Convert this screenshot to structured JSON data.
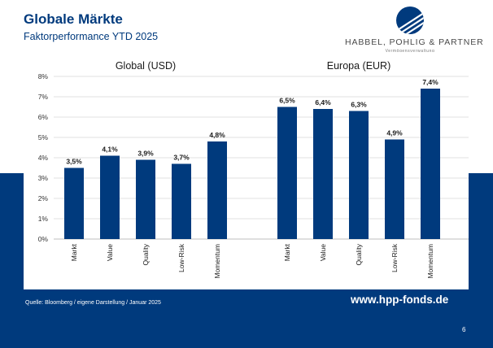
{
  "slide": {
    "title": "Globale Märkte",
    "subtitle": "Faktorperformance YTD 2025",
    "source": "Quelle: Bloomberg / eigene Darstellung / Januar 2025",
    "url": "www.hpp-fonds.de",
    "page_number": "6"
  },
  "logo": {
    "name": "HABBEL, POHLIG & PARTNER",
    "tagline": "Vermögensverwaltung",
    "color": "#003a7d"
  },
  "colors": {
    "bar": "#003a7d",
    "background_band": "#003a7d",
    "text": "#003a7d"
  },
  "chart_data": {
    "type": "bar",
    "y_ticks": [
      "0%",
      "1%",
      "2%",
      "3%",
      "4%",
      "5%",
      "6%",
      "7%",
      "8%"
    ],
    "ylim": [
      0,
      8
    ],
    "grid": true,
    "groups": [
      {
        "title": "Global (USD)",
        "categories": [
          "Markt",
          "Value",
          "Quality",
          "Low-Risk",
          "Momentum"
        ],
        "values": [
          3.5,
          4.1,
          3.9,
          3.7,
          4.8
        ],
        "labels": [
          "3,5%",
          "4,1%",
          "3,9%",
          "3,7%",
          "4,8%"
        ]
      },
      {
        "title": "Europa (EUR)",
        "categories": [
          "Markt",
          "Value",
          "Quality",
          "Low-Risk",
          "Momentum"
        ],
        "values": [
          6.5,
          6.4,
          6.3,
          4.9,
          7.4
        ],
        "labels": [
          "6,5%",
          "6,4%",
          "6,3%",
          "4,9%",
          "7,4%"
        ]
      }
    ]
  }
}
